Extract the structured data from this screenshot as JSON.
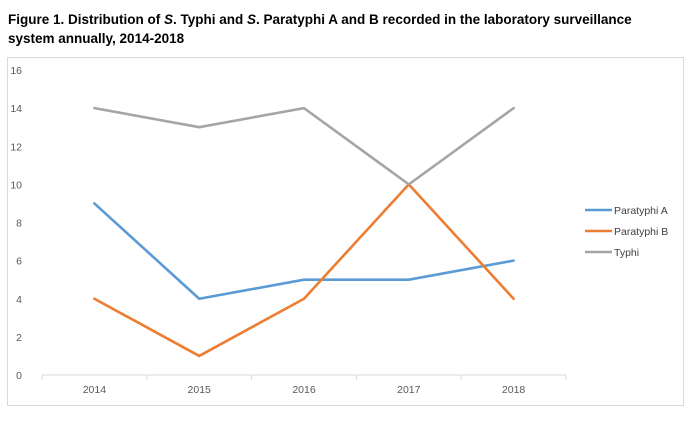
{
  "title": {
    "part1": "Figure 1. Distribution of ",
    "s1": "S",
    "part2": ". Typhi and ",
    "s2": "S",
    "part3": ". Paratyphi A and B recorded in the laboratory surveillance",
    "line2": "system annually, 2014-2018"
  },
  "chart_data": {
    "type": "line",
    "x": [
      "2014",
      "2015",
      "2016",
      "2017",
      "2018"
    ],
    "series": [
      {
        "name": "Paratyphi A",
        "values": [
          9,
          4,
          5,
          5,
          6
        ],
        "color": "#5b9bd5"
      },
      {
        "name": "Paratyphi B",
        "values": [
          4,
          1,
          4,
          10,
          4
        ],
        "color": "#ed7d31"
      },
      {
        "name": "Typhi",
        "values": [
          14,
          13,
          14,
          10,
          14
        ],
        "color": "#a5a5a5"
      }
    ],
    "ylim": [
      0,
      16
    ],
    "yticks": [
      "0",
      "2",
      "4",
      "6",
      "8",
      "10",
      "12",
      "14",
      "16"
    ],
    "grid": false,
    "legend": "right"
  }
}
